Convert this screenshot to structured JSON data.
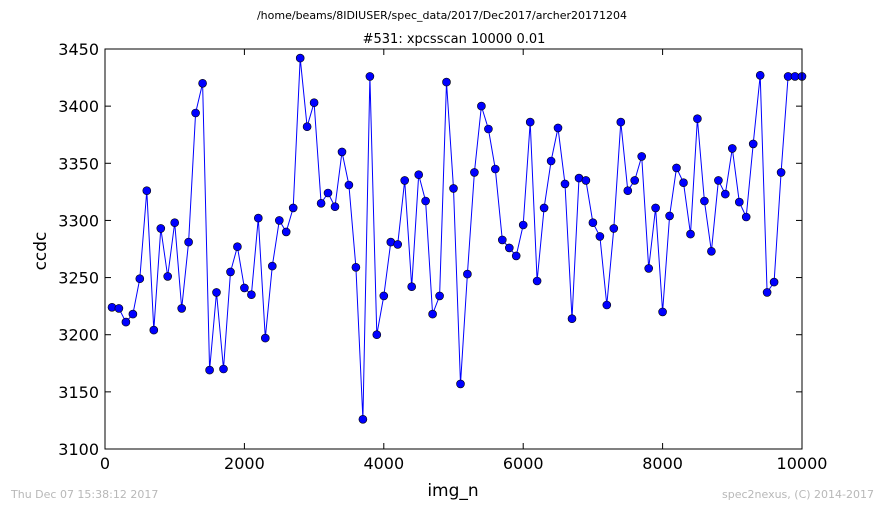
{
  "header": {
    "path_title": "/home/beams/8IDIUSER/spec_data/2017/Dec2017/archer20171204",
    "scan_title": "#531: xpcsscan 10000 0.01"
  },
  "footer": {
    "timestamp": "Thu Dec 07 15:38:12 2017",
    "credit": "spec2nexus, (C) 2014-2017"
  },
  "colors": {
    "series": "#0000ff",
    "axes": "#000000",
    "footer_text": "#b8b8b8"
  },
  "chart_data": {
    "type": "line",
    "title": "#531: xpcsscan 10000 0.01",
    "xlabel": "img_n",
    "ylabel": "ccdc",
    "xlim": [
      0,
      10000
    ],
    "ylim": [
      3100,
      3450
    ],
    "xticks": [
      0,
      2000,
      4000,
      6000,
      8000,
      10000
    ],
    "yticks": [
      3100,
      3150,
      3200,
      3250,
      3300,
      3350,
      3400,
      3450
    ],
    "xtick_labels": [
      "0",
      "2000",
      "4000",
      "6000",
      "8000",
      "10000"
    ],
    "ytick_labels": [
      "3100",
      "3150",
      "3200",
      "3250",
      "3300",
      "3350",
      "3400",
      "3450"
    ],
    "grid": false,
    "legend": false,
    "marker": "circle",
    "series": [
      {
        "x": [
          100,
          200,
          300,
          400,
          500,
          600,
          700,
          800,
          900,
          1000,
          1100,
          1200,
          1300,
          1400,
          1500,
          1600,
          1700,
          1800,
          1900,
          2000,
          2100,
          2200,
          2300,
          2400,
          2500,
          2600,
          2700,
          2800,
          2900,
          3000,
          3100,
          3200,
          3300,
          3400,
          3500,
          3600,
          3700,
          3800,
          3900,
          4000,
          4100,
          4200,
          4300,
          4400,
          4500,
          4600,
          4700,
          4800,
          4900,
          5000,
          5100,
          5200,
          5300,
          5400,
          5500,
          5600,
          5700,
          5800,
          5900,
          6000,
          6100,
          6200,
          6300,
          6400,
          6500,
          6600,
          6700,
          6800,
          6900,
          7000,
          7100,
          7200,
          7300,
          7400,
          7500,
          7600,
          7700,
          7800,
          7900,
          8000,
          8100,
          8200,
          8300,
          8400,
          8500,
          8600,
          8700,
          8800,
          8900,
          9000,
          9100,
          9200,
          9300,
          9400,
          9500,
          9600,
          9700,
          9800,
          9900,
          10000
        ],
        "values": [
          3224,
          3223,
          3211,
          3218,
          3249,
          3326,
          3204,
          3293,
          3251,
          3298,
          3223,
          3281,
          3394,
          3420,
          3169,
          3237,
          3170,
          3255,
          3277,
          3241,
          3235,
          3302,
          3197,
          3260,
          3300,
          3290,
          3311,
          3442,
          3382,
          3403,
          3315,
          3324,
          3312,
          3360,
          3331,
          3259,
          3126,
          3426,
          3200,
          3234,
          3281,
          3279,
          3335,
          3242,
          3340,
          3317,
          3218,
          3234,
          3421,
          3328,
          3157,
          3253,
          3342,
          3400,
          3380,
          3345,
          3283,
          3276,
          3269,
          3296,
          3386,
          3247,
          3311,
          3352,
          3381,
          3332,
          3214,
          3337,
          3335,
          3298,
          3286,
          3226,
          3293,
          3386,
          3326,
          3335,
          3356,
          3258,
          3311,
          3220,
          3304,
          3346,
          3333,
          3288,
          3389,
          3317,
          3273,
          3335,
          3323,
          3363,
          3316,
          3303,
          3367,
          3427,
          3237,
          3246,
          3342,
          3426,
          3426,
          3426
        ]
      }
    ]
  }
}
